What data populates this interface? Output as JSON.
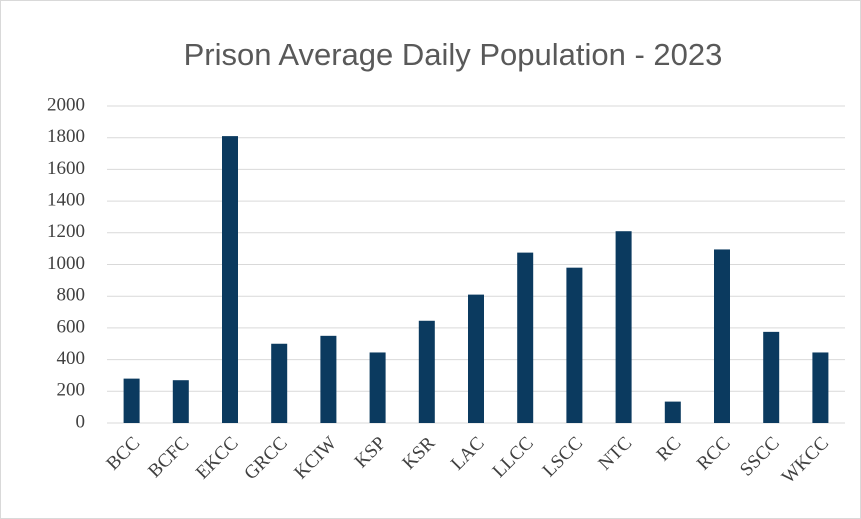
{
  "chart_data": {
    "type": "bar",
    "title": "Prison Average Daily Population - 2023",
    "categories": [
      "BCC",
      "BCFC",
      "EKCC",
      "GRCC",
      "KCIW",
      "KSP",
      "KSR",
      "LAC",
      "LLCC",
      "LSCC",
      "NTC",
      "RC",
      "RCC",
      "SSCC",
      "WKCC"
    ],
    "values": [
      280,
      270,
      1810,
      500,
      550,
      445,
      645,
      810,
      1075,
      980,
      1210,
      135,
      1095,
      575,
      445
    ],
    "color": "#0b3a5f",
    "ylim": [
      0,
      2000
    ],
    "yticks": [
      0,
      200,
      400,
      600,
      800,
      1000,
      1200,
      1400,
      1600,
      1800,
      2000
    ],
    "grid": true
  }
}
